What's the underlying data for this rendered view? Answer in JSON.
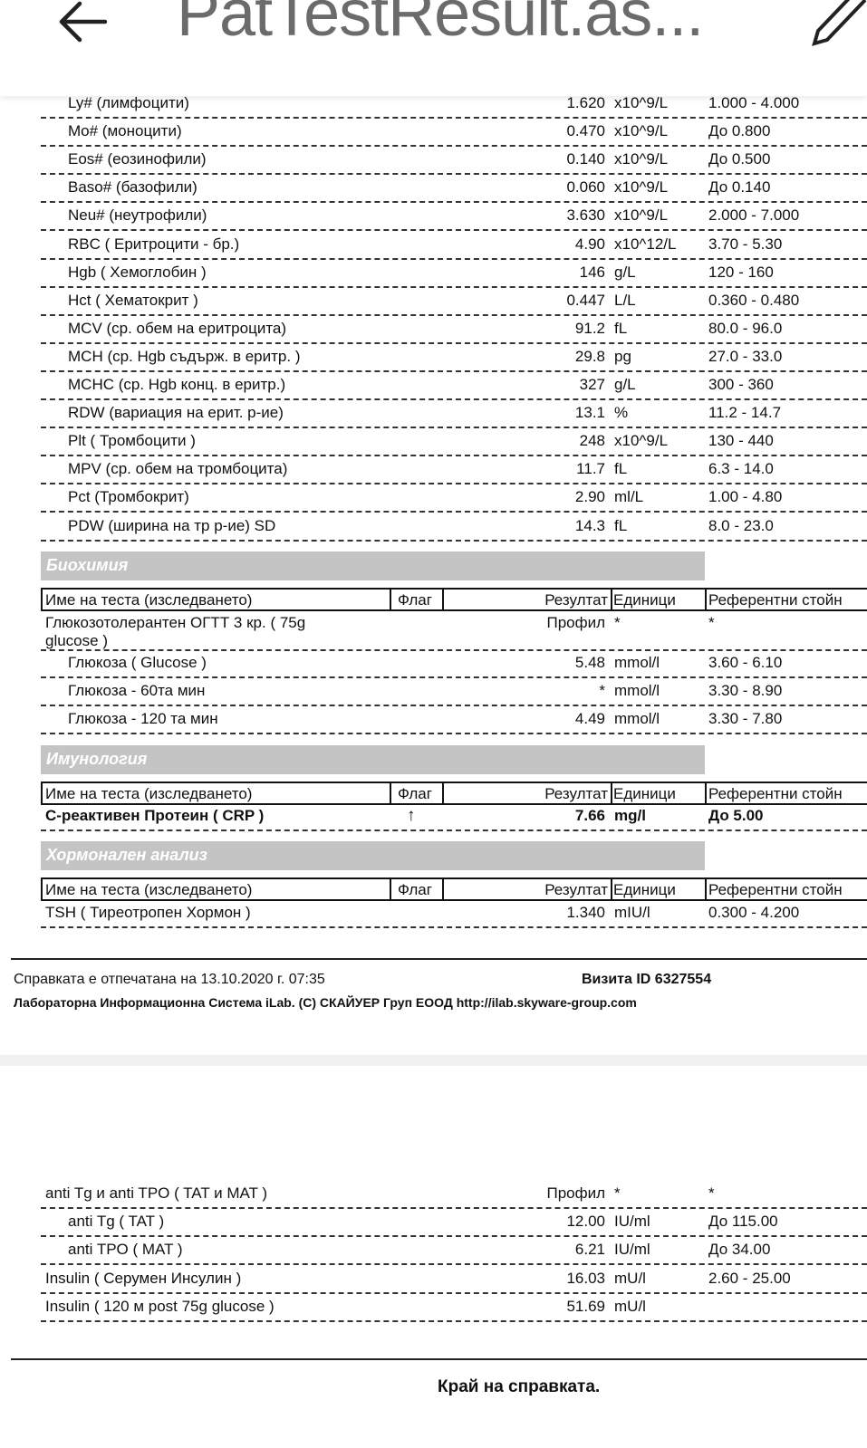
{
  "appbar": {
    "title": "PatTestResult.as...",
    "back_icon": "arrow-left-icon",
    "edit_icon": "pencil-icon"
  },
  "cbc_rows": [
    {
      "name": "Ly# (лимфоцити)",
      "result": "1.620",
      "unit": "x10^9/L",
      "ref": "1.000 - 4.000",
      "indent": true
    },
    {
      "name": "Mo# (моноцити)",
      "result": "0.470",
      "unit": "x10^9/L",
      "ref": "До 0.800",
      "indent": true
    },
    {
      "name": "Eos# (еозинофили)",
      "result": "0.140",
      "unit": "x10^9/L",
      "ref": "До 0.500",
      "indent": true
    },
    {
      "name": "Baso# (базофили)",
      "result": "0.060",
      "unit": "x10^9/L",
      "ref": "До 0.140",
      "indent": true
    },
    {
      "name": "Neu# (неутрофили)",
      "result": "3.630",
      "unit": "x10^9/L",
      "ref": "2.000 - 7.000",
      "indent": true
    },
    {
      "name": "RBC ( Еритроцити - бр.)",
      "result": "4.90",
      "unit": "x10^12/L",
      "ref": "3.70 - 5.30",
      "indent": true
    },
    {
      "name": "Hgb ( Хемоглобин )",
      "result": "146",
      "unit": "g/L",
      "ref": "120 - 160",
      "indent": true
    },
    {
      "name": "Hct ( Хематокрит )",
      "result": "0.447",
      "unit": "L/L",
      "ref": "0.360 - 0.480",
      "indent": true
    },
    {
      "name": "MCV (ср. обем на еритроцита)",
      "result": "91.2",
      "unit": "fL",
      "ref": "80.0 - 96.0",
      "indent": true
    },
    {
      "name": "MCH (ср. Hgb съдърж. в еритр. )",
      "result": "29.8",
      "unit": "pg",
      "ref": "27.0 - 33.0",
      "indent": true
    },
    {
      "name": "MCHC (ср. Hgb конц. в еритр.)",
      "result": "327",
      "unit": "g/L",
      "ref": "300 - 360",
      "indent": true
    },
    {
      "name": "RDW (вариация на ерит. р-ие)",
      "result": "13.1",
      "unit": "%",
      "ref": "11.2 - 14.7",
      "indent": true
    },
    {
      "name": "Plt ( Тромбоцити )",
      "result": "248",
      "unit": "x10^9/L",
      "ref": "130 - 440",
      "indent": true
    },
    {
      "name": "MPV (ср. обем на тромбоцита)",
      "result": "11.7",
      "unit": "fL",
      "ref": "6.3 - 14.0",
      "indent": true
    },
    {
      "name": "Pct (Тромбокрит)",
      "result": "2.90",
      "unit": "ml/L",
      "ref": "1.00 - 4.80",
      "indent": true
    },
    {
      "name": "PDW (ширина на тр р-ие) SD",
      "result": "14.3",
      "unit": "fL",
      "ref": "8.0 - 23.0",
      "indent": true
    }
  ],
  "table_header": {
    "name": "Име на теста (изследването)",
    "flag": "Флаг",
    "result": "Резултат",
    "unit": "Единици",
    "ref": "Референтни стойн"
  },
  "sections": {
    "biochem": {
      "title": "Биохимия",
      "profile": {
        "name_line1": "Глюкозотолерантен ОГТТ 3 кр.  ( 75g",
        "name_line2": "glucose )",
        "result": "Профил",
        "unit": "*",
        "ref": "*"
      },
      "rows": [
        {
          "name": "Глюкоза ( Glucose )",
          "result": "5.48",
          "unit": "mmol/l",
          "ref": "3.60 - 6.10",
          "indent": true
        },
        {
          "name": "Глюкоза - 60та мин",
          "result": "*",
          "unit": "mmol/l",
          "ref": "3.30 - 8.90",
          "indent": true
        },
        {
          "name": "Глюкоза - 120 та мин",
          "result": "4.49",
          "unit": "mmol/l",
          "ref": "3.30 - 7.80",
          "indent": true
        }
      ]
    },
    "immuno": {
      "title": "Имунология",
      "rows": [
        {
          "name": "С-реактивен Протеин ( CRP )",
          "flag": "↑",
          "result": "7.66",
          "unit": "mg/l",
          "ref": "До 5.00",
          "bold": true
        }
      ]
    },
    "hormone": {
      "title": "Хормонален анализ",
      "rows": [
        {
          "name": "TSH   ( Тиреотропен Хормон )",
          "result": "1.340",
          "unit": "mIU/l",
          "ref": "0.300 - 4.200"
        }
      ]
    }
  },
  "footer": {
    "printed": "Справката е отпечатана на 13.10.2020 г. 07:35",
    "visit": "Визита ID 6327554",
    "system": "Лабораторна Информационна Система iLab. (C) СКАЙУЕР Груп ЕООД http://ilab.skyware-group.com"
  },
  "page2_rows": [
    {
      "name": "anti Tg  и  anti TPO  ( TAT и  MAT )",
      "result": "Профил",
      "unit": "*",
      "ref": "*"
    },
    {
      "name": "anti Tg ( TAT )",
      "result": "12.00",
      "unit": "IU/ml",
      "ref": "До 115.00",
      "indent": true
    },
    {
      "name": "anti TPO ( MAT )",
      "result": "6.21",
      "unit": "IU/ml",
      "ref": "До 34.00",
      "indent": true
    },
    {
      "name": "Insulin ( Серумен Инсулин )",
      "result": "16.03",
      "unit": "mU/l",
      "ref": "2.60 - 25.00"
    },
    {
      "name": "Insulin ( 120 м post 75g glucose )",
      "result": "51.69",
      "unit": "mU/l",
      "ref": ""
    }
  ],
  "end_text": "Край на справката."
}
